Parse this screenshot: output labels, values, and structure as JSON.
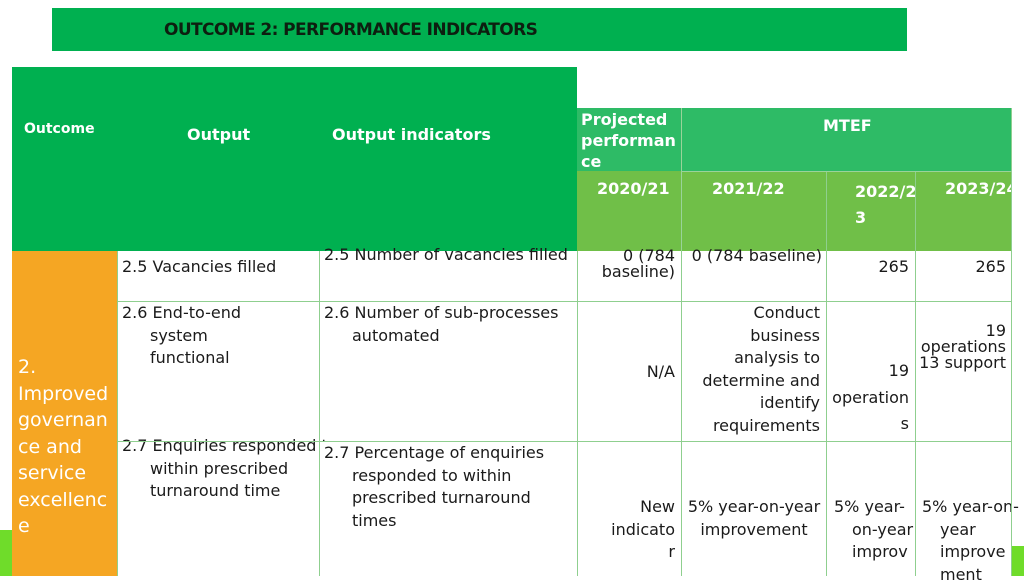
{
  "title": "OUTCOME 2: PERFORMANCE INDICATORS",
  "headers": {
    "outcome": "Outcome",
    "output": "Output",
    "output_indicators": "Output indicators",
    "projected_performance": "Projected performan ce",
    "mtef": "MTEF",
    "years": [
      "2020/21",
      "2021/22",
      "2022/2 3",
      "2023/24"
    ]
  },
  "outcome_label": "2. Improved governan ce and service excellenc e",
  "rows": [
    {
      "output": "2.5 Vacancies filled",
      "indicator": "2.5 Number of vacancies filled",
      "projected": "0 (784 baseline)",
      "y2021": "0 (784 baseline)",
      "y2022": "265",
      "y2023": "265"
    },
    {
      "output": "2.6 End-to-end system functional",
      "indicator": "2.6 Number of sub-processes automated",
      "projected": "N/A",
      "y2021": "Conduct business analysis to determine and identify requirements",
      "y2022": "19 operation s",
      "y2023": "19 operations 13 support"
    },
    {
      "output": "2.7 Enquiries responded to within prescribed turnaround time",
      "indicator": "2.7 Percentage of enquiries responded to within prescribed turnaround times",
      "projected": "New indicato r",
      "y2021": "5% year-on-year improvement",
      "y2022": "5% year-on-year improv",
      "y2023": "5% year-on-year improve ment"
    }
  ]
}
